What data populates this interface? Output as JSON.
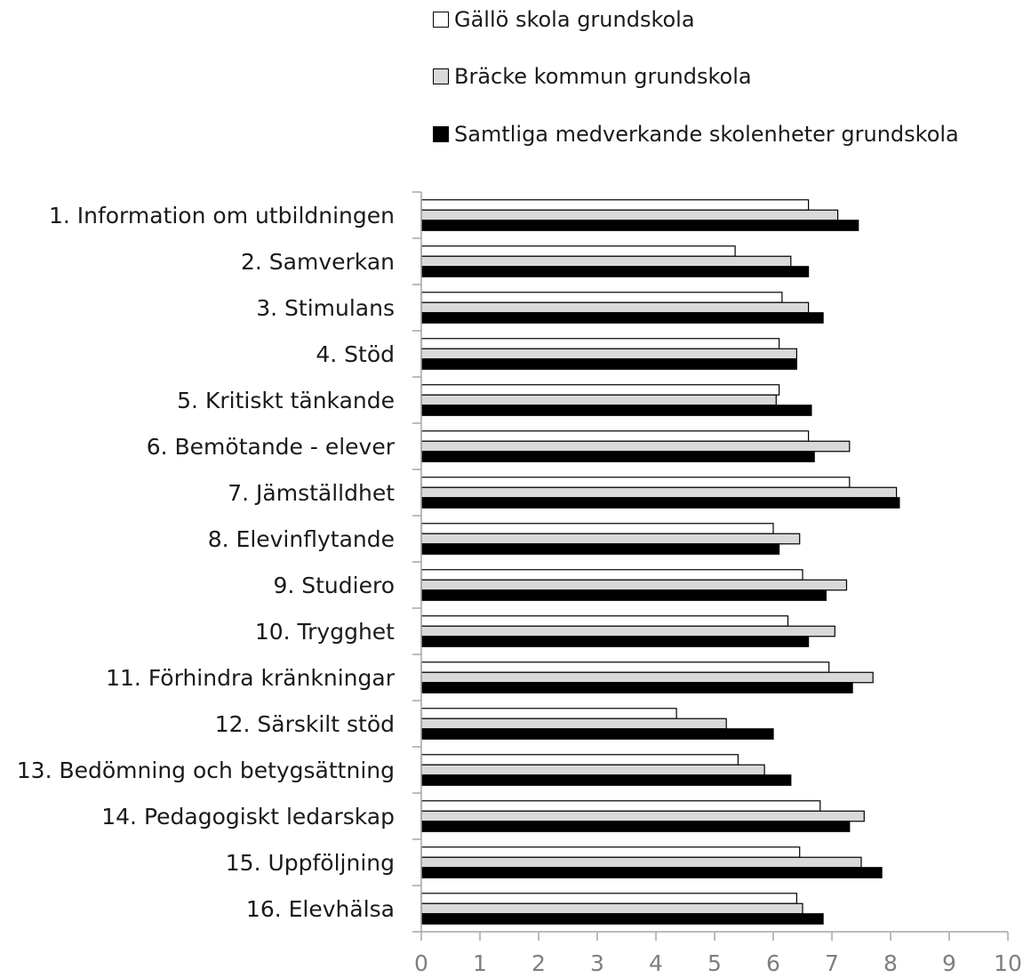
{
  "chart_data": {
    "type": "bar",
    "orientation": "horizontal",
    "categories": [
      "1. Information om utbildningen",
      "2. Samverkan",
      "3. Stimulans",
      "4. Stöd",
      "5. Kritiskt tänkande",
      "6. Bemötande - elever",
      "7. Jämställdhet",
      "8. Elevinflytande",
      "9. Studiero",
      "10. Trygghet",
      "11. Förhindra kränkningar",
      "12. Särskilt stöd",
      "13. Bedömning och betygsättning",
      "14. Pedagogiskt ledarskap",
      "15. Uppföljning",
      "16. Elevhälsa"
    ],
    "series": [
      {
        "name": "Gällö skola grundskola",
        "color": "#ffffff",
        "values": [
          6.6,
          5.35,
          6.15,
          6.1,
          6.1,
          6.6,
          7.3,
          6.0,
          6.5,
          6.25,
          6.95,
          4.35,
          5.4,
          6.8,
          6.45,
          6.4
        ]
      },
      {
        "name": "Bräcke kommun grundskola",
        "color": "#d9d9d9",
        "values": [
          7.1,
          6.3,
          6.6,
          6.4,
          6.05,
          7.3,
          8.1,
          6.45,
          7.25,
          7.05,
          7.7,
          5.2,
          5.85,
          7.55,
          7.5,
          6.5
        ]
      },
      {
        "name": "Samtliga medverkande skolenheter grundskola",
        "color": "#000000",
        "values": [
          7.45,
          6.6,
          6.85,
          6.4,
          6.65,
          6.7,
          8.15,
          6.1,
          6.9,
          6.6,
          7.35,
          6.0,
          6.3,
          7.3,
          7.85,
          6.85
        ]
      }
    ],
    "xlim": [
      0,
      10
    ],
    "xticks": [
      "0",
      "1",
      "2",
      "3",
      "4",
      "5",
      "6",
      "7",
      "8",
      "9",
      "10"
    ],
    "title": "",
    "xlabel": "",
    "ylabel": "",
    "grid": false,
    "legend_position": "top"
  }
}
